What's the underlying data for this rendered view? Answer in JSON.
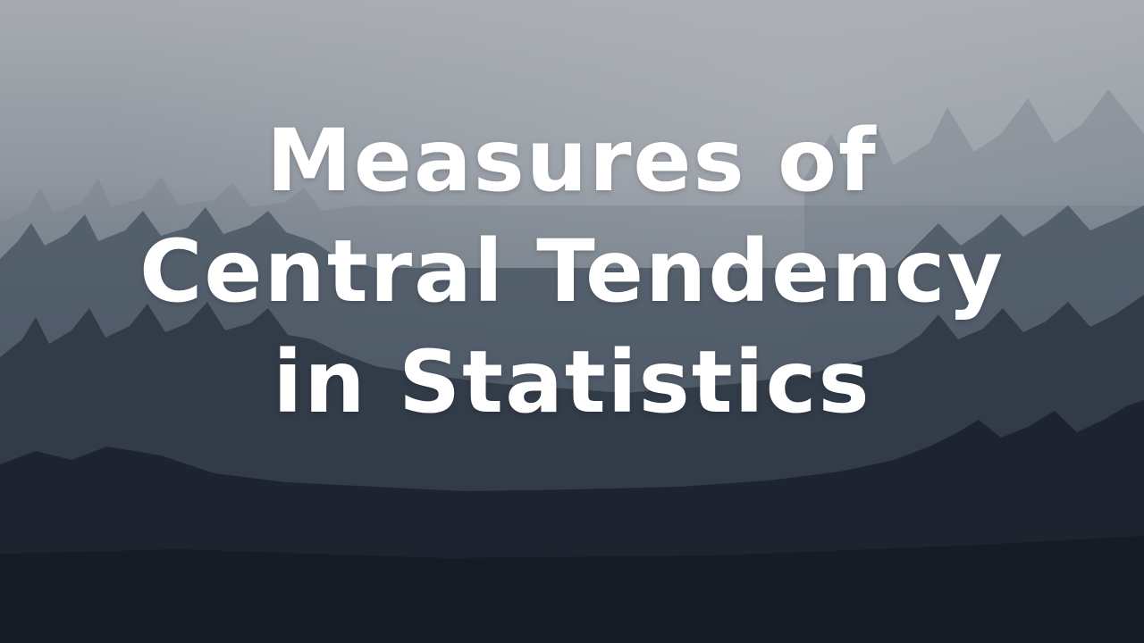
{
  "title": {
    "line1": "Measures of",
    "line2": "Central Tendency",
    "line3": "in Statistics"
  },
  "background": {
    "scene": "misty-pine-forest",
    "colors": {
      "sky_top": "#a9adb3",
      "mist": "#7e8792",
      "forest_mid": "#465261",
      "forest_dark": "#1c232e",
      "text": "#ffffff"
    }
  }
}
